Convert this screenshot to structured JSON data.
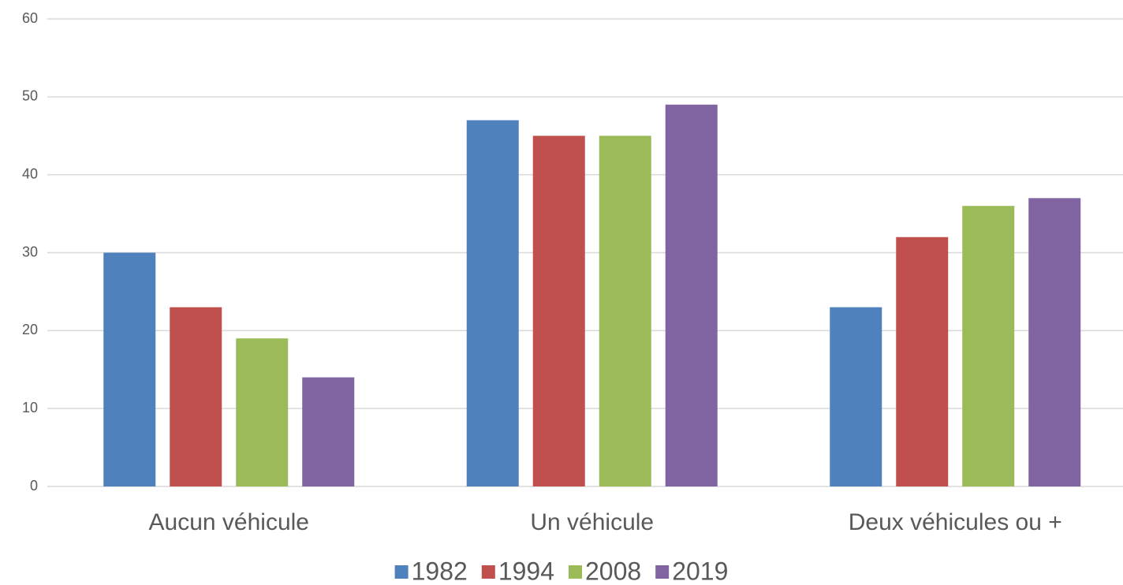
{
  "chart_data": {
    "type": "bar",
    "categories": [
      "Aucun véhicule",
      "Un véhicule",
      "Deux véhicules ou +"
    ],
    "series": [
      {
        "name": "1982",
        "color": "#4f81bd",
        "values": [
          30,
          47,
          23
        ]
      },
      {
        "name": "1994",
        "color": "#c0504d",
        "values": [
          23,
          45,
          32
        ]
      },
      {
        "name": "2008",
        "color": "#9bbb59",
        "values": [
          19,
          45,
          36
        ]
      },
      {
        "name": "2019",
        "color": "#8064a2",
        "values": [
          14,
          49,
          37
        ]
      }
    ],
    "ylim": [
      0,
      60
    ],
    "yticks": [
      0,
      10,
      20,
      30,
      40,
      50,
      60
    ],
    "grid": true,
    "legend": "bottom"
  }
}
